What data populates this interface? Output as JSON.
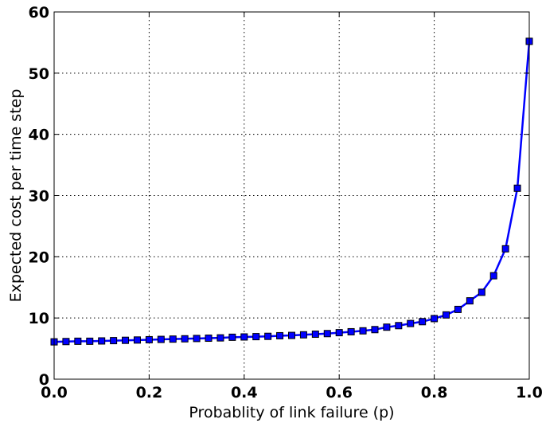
{
  "chart_data": {
    "type": "line",
    "title": "",
    "xlabel": "Probablity of link failure (p)",
    "ylabel": "Expected cost per time step",
    "xlim": [
      0.0,
      1.0
    ],
    "ylim": [
      0,
      60
    ],
    "xticks": [
      "0.0",
      "0.2",
      "0.4",
      "0.6",
      "0.8",
      "1.0"
    ],
    "yticks": [
      "0",
      "10",
      "20",
      "30",
      "40",
      "50",
      "60"
    ],
    "grid": true,
    "legend": "none",
    "marker": "square",
    "color": "#0000ff",
    "marker_edge_color": "#000000",
    "series": [
      {
        "x": [
          0.0,
          0.025,
          0.05,
          0.075,
          0.1,
          0.125,
          0.15,
          0.175,
          0.2,
          0.225,
          0.25,
          0.275,
          0.3,
          0.325,
          0.35,
          0.375,
          0.4,
          0.425,
          0.45,
          0.475,
          0.5,
          0.525,
          0.55,
          0.575,
          0.6,
          0.625,
          0.65,
          0.675,
          0.7,
          0.725,
          0.75,
          0.775,
          0.8,
          0.825,
          0.85,
          0.875,
          0.9,
          0.925,
          0.95,
          0.975,
          1.0
        ],
        "values": [
          6.1,
          6.15,
          6.2,
          6.2,
          6.25,
          6.3,
          6.35,
          6.4,
          6.45,
          6.5,
          6.55,
          6.6,
          6.65,
          6.7,
          6.75,
          6.85,
          6.9,
          6.95,
          7.0,
          7.1,
          7.15,
          7.25,
          7.35,
          7.45,
          7.6,
          7.75,
          7.9,
          8.1,
          8.5,
          8.75,
          9.1,
          9.4,
          9.9,
          10.5,
          11.4,
          12.8,
          14.2,
          16.9,
          21.3,
          31.2,
          55.2
        ]
      }
    ]
  }
}
